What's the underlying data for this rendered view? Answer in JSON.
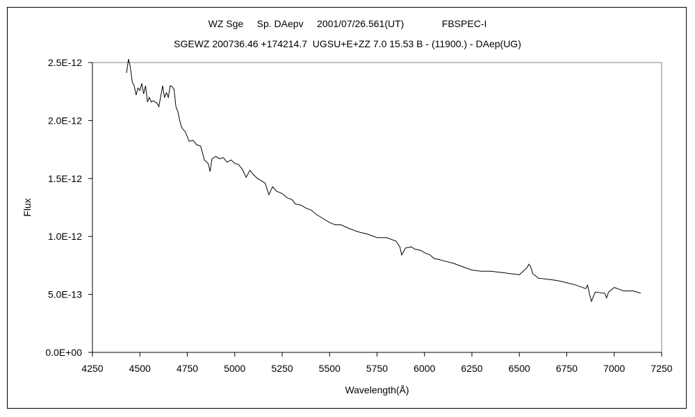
{
  "chart_data": {
    "type": "line",
    "title_line1": "WZ Sge     Sp. DAepv     2001/07/26.561(UT)              FBSPEC-I",
    "title_line2": "SGEWZ 200736.46 +174214.7  UGSU+E+ZZ 7.0 15.53 B - (11900.) - DAep(UG)",
    "xlabel": "Wavelength(Å)",
    "ylabel": "Flux",
    "xlim": [
      4250,
      7250
    ],
    "ylim": [
      0,
      2.5e-12
    ],
    "x_ticks": [
      4250,
      4500,
      4750,
      5000,
      5250,
      5500,
      5750,
      6000,
      6250,
      6500,
      6750,
      7000,
      7250
    ],
    "x_tick_labels": [
      "4250",
      "4500",
      "4750",
      "5000",
      "5250",
      "5500",
      "5750",
      "6000",
      "6250",
      "6500",
      "6750",
      "7000",
      "7250"
    ],
    "y_ticks": [
      0,
      5e-13,
      1e-12,
      1.5e-12,
      2e-12,
      2.5e-12
    ],
    "y_tick_labels": [
      "0.0E+00",
      "5.0E-13",
      "1.0E-12",
      "1.5E-12",
      "2.0E-12",
      "2.5E-12"
    ],
    "grid": false,
    "legend": "none",
    "line_color": "#000000",
    "series": [
      {
        "x": [
          4430,
          4440,
          4450,
          4460,
          4470,
          4480,
          4490,
          4500,
          4510,
          4520,
          4530,
          4540,
          4550,
          4560,
          4570,
          4580,
          4590,
          4600,
          4610,
          4620,
          4630,
          4640,
          4650,
          4660,
          4670,
          4680,
          4690,
          4700,
          4710,
          4720,
          4740,
          4760,
          4780,
          4800,
          4820,
          4840,
          4860,
          4870,
          4880,
          4900,
          4920,
          4940,
          4960,
          4980,
          5000,
          5020,
          5040,
          5060,
          5080,
          5100,
          5120,
          5140,
          5160,
          5180,
          5200,
          5220,
          5250,
          5280,
          5300,
          5320,
          5350,
          5380,
          5400,
          5430,
          5460,
          5500,
          5530,
          5560,
          5600,
          5650,
          5700,
          5750,
          5800,
          5850,
          5870,
          5880,
          5900,
          5930,
          5950,
          5980,
          6000,
          6030,
          6050,
          6080,
          6100,
          6150,
          6200,
          6250,
          6300,
          6350,
          6400,
          6450,
          6500,
          6520,
          6540,
          6550,
          6560,
          6570,
          6600,
          6650,
          6700,
          6750,
          6800,
          6850,
          6860,
          6870,
          6880,
          6900,
          6950,
          6960,
          6970,
          7000,
          7050,
          7100,
          7140
        ],
        "y": [
          2.41e-12,
          2.53e-12,
          2.46e-12,
          2.33e-12,
          2.3e-12,
          2.22e-12,
          2.28e-12,
          2.26e-12,
          2.32e-12,
          2.23e-12,
          2.3e-12,
          2.16e-12,
          2.2e-12,
          2.16e-12,
          2.17e-12,
          2.16e-12,
          2.15e-12,
          2.12e-12,
          2.21e-12,
          2.3e-12,
          2.2e-12,
          2.24e-12,
          2.2e-12,
          2.3e-12,
          2.29e-12,
          2.27e-12,
          2.12e-12,
          2.08e-12,
          2e-12,
          1.94e-12,
          1.9e-12,
          1.82e-12,
          1.83e-12,
          1.79e-12,
          1.78e-12,
          1.66e-12,
          1.63e-12,
          1.56e-12,
          1.67e-12,
          1.69e-12,
          1.67e-12,
          1.68e-12,
          1.64e-12,
          1.66e-12,
          1.63e-12,
          1.62e-12,
          1.58e-12,
          1.51e-12,
          1.57e-12,
          1.53e-12,
          1.5e-12,
          1.48e-12,
          1.46e-12,
          1.36e-12,
          1.43e-12,
          1.39e-12,
          1.37e-12,
          1.33e-12,
          1.32e-12,
          1.28e-12,
          1.27e-12,
          1.24e-12,
          1.23e-12,
          1.19e-12,
          1.16e-12,
          1.12e-12,
          1.1e-12,
          1.1e-12,
          1.07e-12,
          1.04e-12,
          1.02e-12,
          9.9e-13,
          9.9e-13,
          9.6e-13,
          9.1e-13,
          8.4e-13,
          9e-13,
          9.1e-13,
          8.9e-13,
          8.8e-13,
          8.6e-13,
          8.4e-13,
          8.1e-13,
          8e-13,
          7.9e-13,
          7.7e-13,
          7.4e-13,
          7.1e-13,
          7e-13,
          7e-13,
          6.9e-13,
          6.8e-13,
          6.7e-13,
          7e-13,
          7.3e-13,
          7.6e-13,
          7.4e-13,
          6.8e-13,
          6.4e-13,
          6.3e-13,
          6.2e-13,
          6e-13,
          5.8e-13,
          5.5e-13,
          5.8e-13,
          5e-13,
          4.4e-13,
          5.2e-13,
          5.1e-13,
          4.7e-13,
          5.2e-13,
          5.6e-13,
          5.3e-13,
          5.3e-13,
          5.1e-13
        ]
      }
    ]
  }
}
